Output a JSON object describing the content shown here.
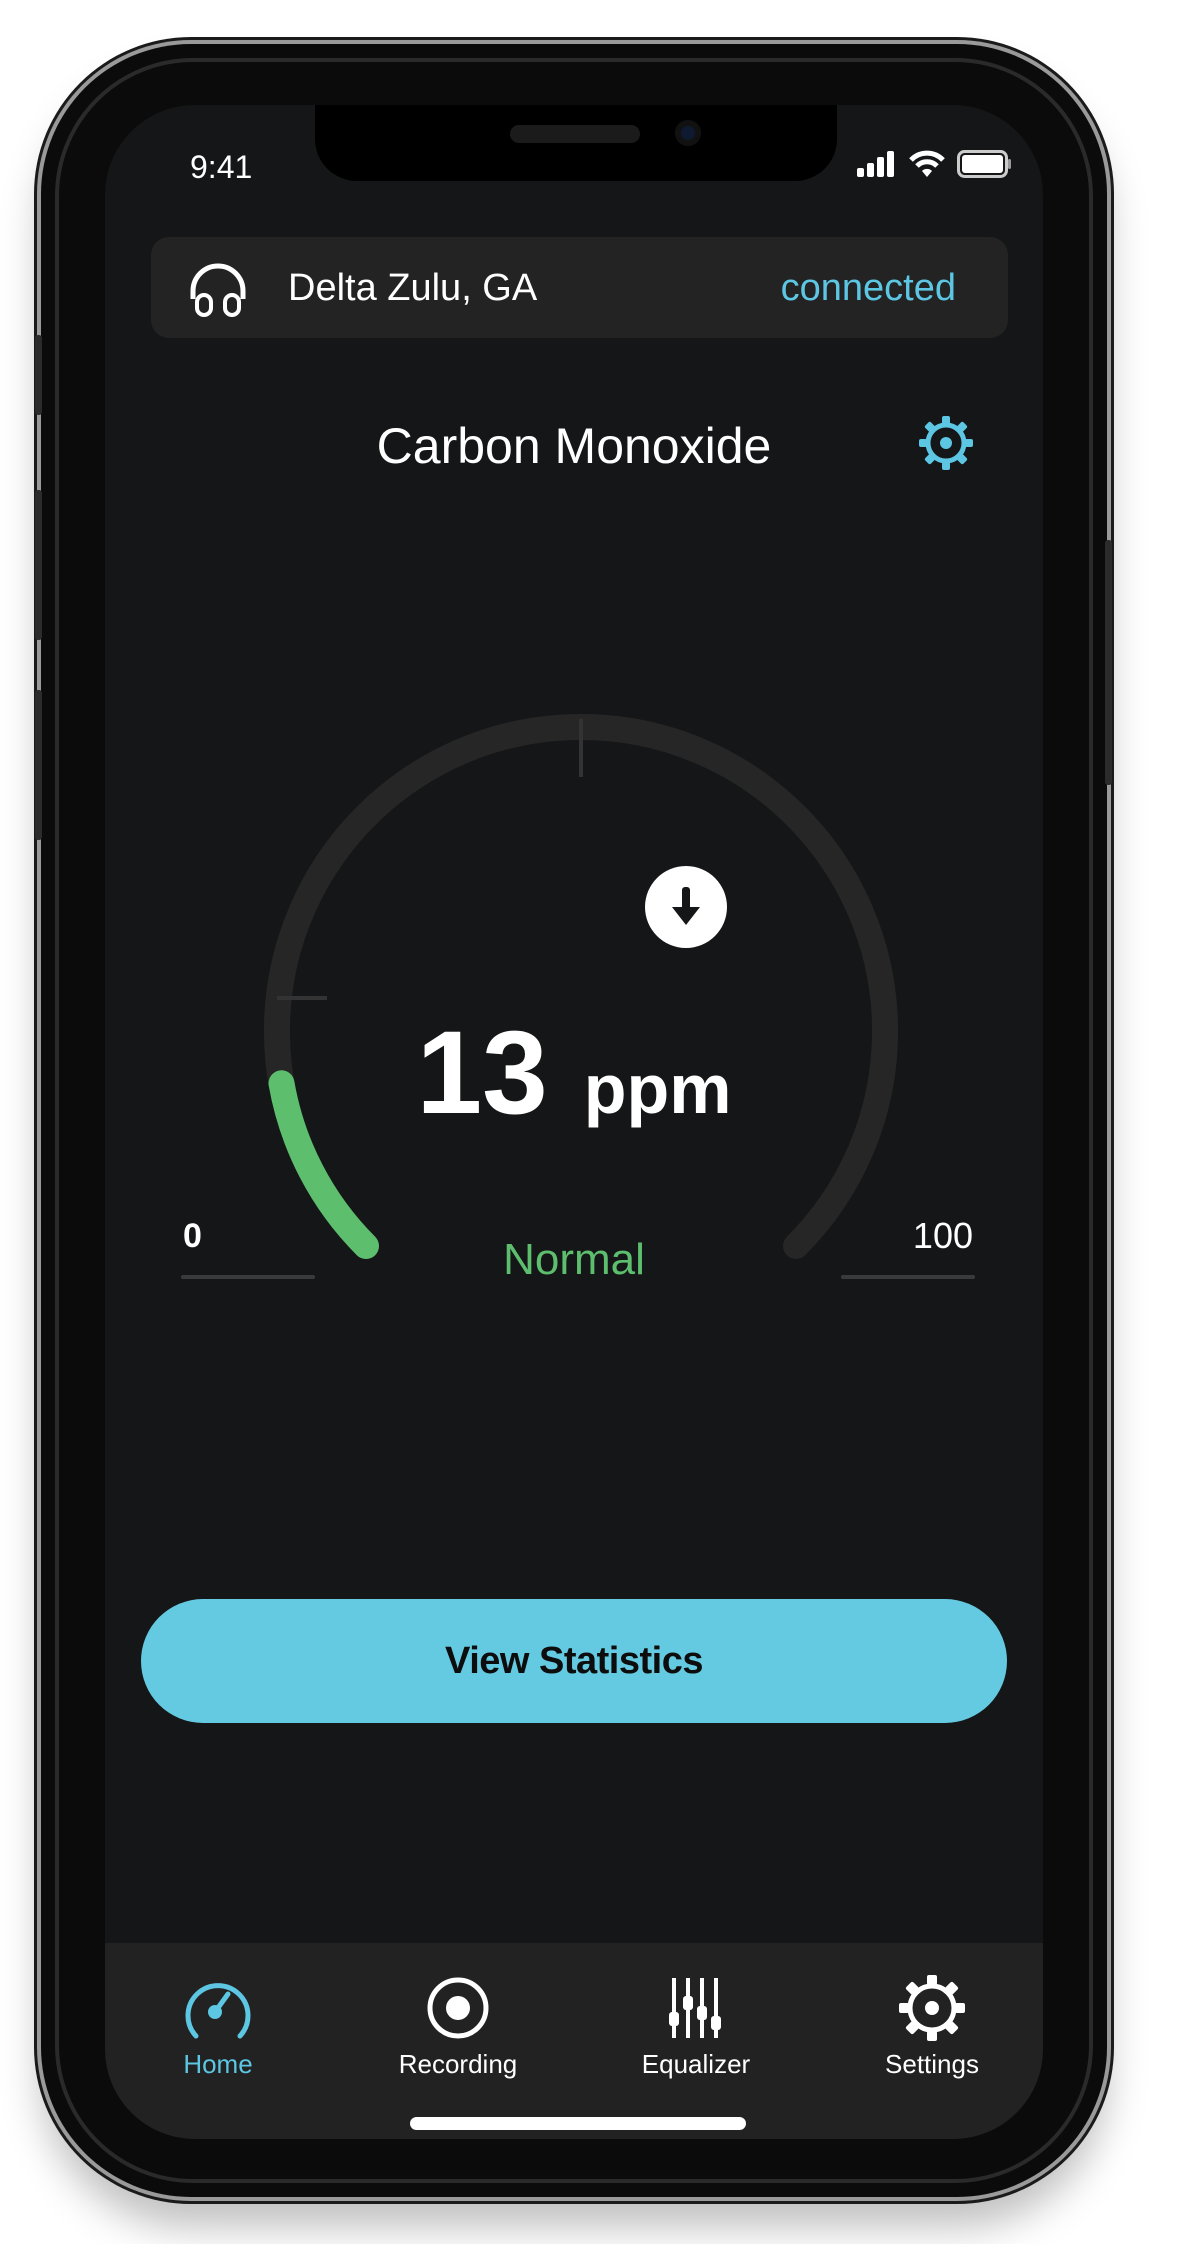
{
  "status_bar": {
    "time": "9:41",
    "icons": [
      "cellular-signal-icon",
      "wifi-icon",
      "battery-icon"
    ]
  },
  "device": {
    "icon": "headphones-icon",
    "name": "Delta Zulu, GA",
    "status": "connected"
  },
  "sensor": {
    "title": "Carbon Monoxide",
    "settings_icon": "gear-icon"
  },
  "gauge": {
    "value": 13,
    "value_label": "13",
    "unit": "ppm",
    "min": 0,
    "max": 100,
    "min_label": "0",
    "max_label": "100",
    "status": "Normal",
    "trend_icon": "arrow-down-icon",
    "arc_degrees": 270
  },
  "actions": {
    "view_statistics": "View Statistics"
  },
  "tabbar": {
    "items": [
      {
        "label": "Home",
        "icon": "speedometer-icon",
        "active": true
      },
      {
        "label": "Recording",
        "icon": "record-icon",
        "active": false
      },
      {
        "label": "Equalizer",
        "icon": "equalizer-icon",
        "active": false
      },
      {
        "label": "Settings",
        "icon": "gear-icon",
        "active": false
      }
    ]
  },
  "colors": {
    "accent": "#64cae2",
    "ok": "#5dbe6e",
    "background": "#151617",
    "card": "#232323",
    "track": "#262626"
  }
}
